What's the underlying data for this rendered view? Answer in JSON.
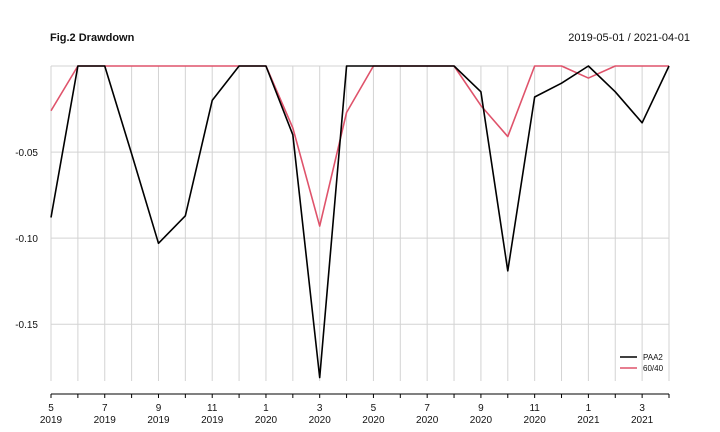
{
  "header": {
    "title": "Fig.2 Drawdown",
    "date_range": "2019-05-01 / 2021-04-01"
  },
  "chart_data": {
    "type": "line",
    "title": "Fig.2 Drawdown",
    "x": [
      "2019-05",
      "2019-06",
      "2019-07",
      "2019-08",
      "2019-09",
      "2019-10",
      "2019-11",
      "2019-12",
      "2020-01",
      "2020-02",
      "2020-03",
      "2020-04",
      "2020-05",
      "2020-06",
      "2020-07",
      "2020-08",
      "2020-09",
      "2020-10",
      "2020-11",
      "2020-12",
      "2021-01",
      "2021-02",
      "2021-03",
      "2021-04"
    ],
    "series": [
      {
        "name": "PAA2",
        "color": "#000000",
        "values": [
          -0.088,
          0,
          0,
          -0.051,
          -0.103,
          -0.087,
          -0.02,
          0,
          0,
          -0.04,
          -0.181,
          0,
          0,
          0,
          0,
          0,
          -0.015,
          -0.119,
          -0.018,
          -0.01,
          0,
          -0.015,
          -0.033,
          0
        ]
      },
      {
        "name": "60/40",
        "color": "#DF536B",
        "values": [
          -0.026,
          0,
          0,
          0,
          0,
          0,
          0,
          0,
          0,
          -0.036,
          -0.093,
          -0.027,
          0,
          0,
          0,
          0,
          -0.023,
          -0.041,
          0,
          0,
          -0.007,
          0,
          0,
          0
        ]
      }
    ],
    "ylim": [
      -0.183,
      0
    ],
    "y_ticks": [
      {
        "value": -0.05,
        "label": "-0.05"
      },
      {
        "value": -0.1,
        "label": "-0.10"
      },
      {
        "value": -0.15,
        "label": "-0.15"
      }
    ],
    "x_tick_labels": [
      {
        "index": 0,
        "month": "5",
        "year": "2019"
      },
      {
        "index": 2,
        "month": "7",
        "year": "2019"
      },
      {
        "index": 4,
        "month": "9",
        "year": "2019"
      },
      {
        "index": 6,
        "month": "11",
        "year": "2019"
      },
      {
        "index": 8,
        "month": "1",
        "year": "2020"
      },
      {
        "index": 10,
        "month": "3",
        "year": "2020"
      },
      {
        "index": 12,
        "month": "5",
        "year": "2020"
      },
      {
        "index": 14,
        "month": "7",
        "year": "2020"
      },
      {
        "index": 16,
        "month": "9",
        "year": "2020"
      },
      {
        "index": 18,
        "month": "11",
        "year": "2020"
      },
      {
        "index": 20,
        "month": "1",
        "year": "2021"
      },
      {
        "index": 22,
        "month": "3",
        "year": "2021"
      }
    ],
    "grid": true,
    "legend": {
      "placement": "bottom-right",
      "entries": [
        "PAA2",
        "60/40"
      ]
    }
  }
}
